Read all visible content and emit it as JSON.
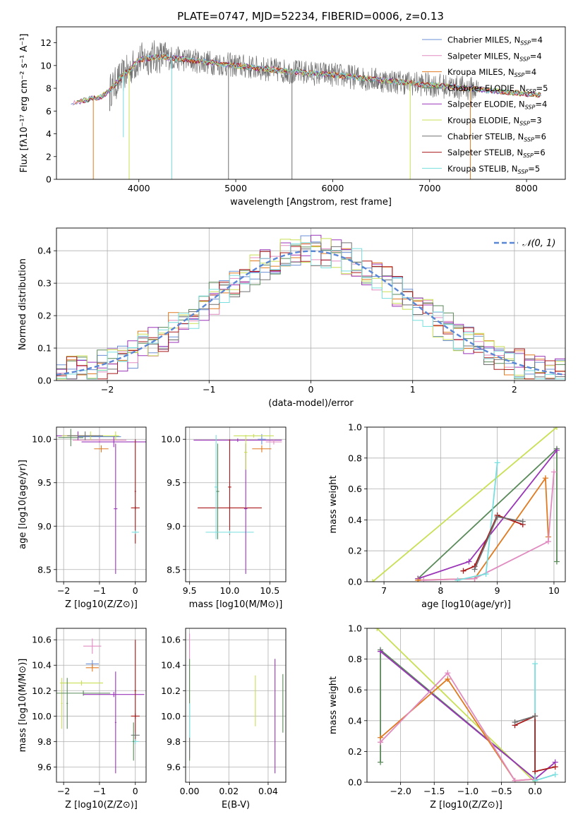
{
  "figure": {
    "title": "PLATE=0747, MJD=52234, FIBERID=0006, z=0.13"
  },
  "colors": {
    "chabrier_miles": "#6b8fd4",
    "salpeter_miles": "#e08cc0",
    "kroupa_miles": "#e07a20",
    "chabrier_elodie": "#5a8a5a",
    "salpeter_elodie": "#9a35b8",
    "kroupa_elodie": "#c8e055",
    "chabrier_stelib": "#707070",
    "salpeter_stelib": "#aa1a1a",
    "kroupa_stelib": "#78dede",
    "gaussian": "#5a86d6",
    "grid": "#b0b0b0"
  },
  "legend_spectrum": [
    {
      "label": "Chabrier MILES, N",
      "sub": "SSP",
      "val": "=4",
      "color_key": "chabrier_miles"
    },
    {
      "label": "Salpeter MILES, N",
      "sub": "SSP",
      "val": "=4",
      "color_key": "salpeter_miles"
    },
    {
      "label": "Kroupa MILES, N",
      "sub": "SSP",
      "val": "=4",
      "color_key": "kroupa_miles"
    },
    {
      "label": "Chabrier ELODIE, N",
      "sub": "SSP",
      "val": "=5",
      "color_key": "chabrier_elodie"
    },
    {
      "label": "Salpeter ELODIE, N",
      "sub": "SSP",
      "val": "=4",
      "color_key": "salpeter_elodie"
    },
    {
      "label": "Kroupa ELODIE, N",
      "sub": "SSP",
      "val": "=3",
      "color_key": "kroupa_elodie"
    },
    {
      "label": "Chabrier STELIB, N",
      "sub": "SSP",
      "val": "=6",
      "color_key": "chabrier_stelib"
    },
    {
      "label": "Salpeter STELIB, N",
      "sub": "SSP",
      "val": "=6",
      "color_key": "salpeter_stelib"
    },
    {
      "label": "Kroupa STELIB, N",
      "sub": "SSP",
      "val": "=5",
      "color_key": "kroupa_stelib"
    }
  ],
  "chart_data": [
    {
      "id": "spectrum",
      "type": "line",
      "xlabel": "wavelength [Angstrom, rest frame]",
      "ylabel": "Flux [fλ10⁻¹⁷ erg cm⁻² s⁻¹ A⁻¹]",
      "xlim": [
        3150,
        8400
      ],
      "ylim": [
        0,
        13.4
      ],
      "xticks": [
        4000,
        5000,
        6000,
        7000,
        8000
      ],
      "yticks": [
        0,
        2,
        4,
        6,
        8,
        10,
        12
      ],
      "grid": false,
      "legend_position": "right",
      "continuum": {
        "x": [
          3300,
          3450,
          3600,
          3700,
          3800,
          3900,
          4000,
          4200,
          4500,
          5000,
          5500,
          6000,
          6500,
          7000,
          7500,
          8000,
          8150
        ],
        "y": [
          6.6,
          7.0,
          7.2,
          7.8,
          8.8,
          9.6,
          10.5,
          10.8,
          10.5,
          10.0,
          9.5,
          9.2,
          8.7,
          8.3,
          7.9,
          7.5,
          7.4
        ]
      },
      "data_noise": 1.1,
      "dips": [
        {
          "x": 3530,
          "y": 0.0,
          "color_key": "kroupa_miles"
        },
        {
          "x": 3700,
          "y": 6.0,
          "color_key": "chabrier_stelib"
        },
        {
          "x": 3840,
          "y": 3.7,
          "color_key": "kroupa_stelib"
        },
        {
          "x": 3900,
          "y": 0.0,
          "color_key": "kroupa_elodie"
        },
        {
          "x": 4340,
          "y": 0.0,
          "color_key": "kroupa_stelib"
        },
        {
          "x": 4925,
          "y": 0.0,
          "color_key": "chabrier_stelib"
        },
        {
          "x": 5580,
          "y": 0.0,
          "color_key": "chabrier_stelib"
        },
        {
          "x": 6800,
          "y": 0.0,
          "color_key": "kroupa_elodie"
        },
        {
          "x": 7420,
          "y": 0.0,
          "color_key": "kroupa_miles"
        }
      ]
    },
    {
      "id": "residuals",
      "type": "line",
      "xlabel": "(data-model)/error",
      "ylabel": "Normed distribution",
      "xlim": [
        -2.5,
        2.5
      ],
      "ylim": [
        0,
        0.47
      ],
      "xticks": [
        -2,
        -1,
        0,
        1,
        2
      ],
      "yticks": [
        0.0,
        0.1,
        0.2,
        0.3,
        0.4
      ],
      "grid": true,
      "legend_position": "top-right",
      "legend_label": "𝒩(0, 1)",
      "hist_bins": 50,
      "hist_jitter": 0.05
    },
    {
      "id": "age_vs_Z",
      "type": "scatter",
      "xlabel": "Z [log10(Z/Z⊙)]",
      "ylabel": "age  [log10(age/yr)]",
      "xlim": [
        -2.2,
        0.3
      ],
      "ylim": [
        8.36,
        10.14
      ],
      "xticks": [
        -2,
        -1,
        0
      ],
      "yticks": [
        8.5,
        9.0,
        9.5,
        10.0
      ],
      "grid": true,
      "points": [
        {
          "x": -1.0,
          "y": 10.03,
          "xerr": 0.6,
          "yerr": 0.02,
          "color_key": "chabrier_miles"
        },
        {
          "x": -1.0,
          "y": 9.99,
          "xerr": 0.75,
          "yerr": 0.03,
          "color_key": "salpeter_miles"
        },
        {
          "x": -0.95,
          "y": 9.89,
          "xerr": 0.2,
          "yerr": 0.04,
          "color_key": "kroupa_miles"
        },
        {
          "x": -1.8,
          "y": 10.02,
          "xerr": 0.35,
          "yerr": 0.1,
          "color_key": "chabrier_elodie"
        },
        {
          "x": -0.6,
          "y": 9.97,
          "xerr": 0.9,
          "yerr": 0.06,
          "color_key": "salpeter_elodie"
        },
        {
          "x": -1.6,
          "y": 10.04,
          "xerr": 0.6,
          "yerr": 0.05,
          "color_key": "salpeter_elodie"
        },
        {
          "x": -0.55,
          "y": 10.04,
          "xerr": 0.05,
          "yerr": 0.05,
          "color_key": "kroupa_elodie"
        },
        {
          "x": -1.25,
          "y": 10.04,
          "xerr": 0.8,
          "yerr": 0.05,
          "color_key": "kroupa_elodie"
        },
        {
          "x": -1.4,
          "y": 10.04,
          "xerr": 0.5,
          "yerr": 0.05,
          "color_key": "chabrier_stelib"
        },
        {
          "x": -0.55,
          "y": 9.2,
          "xerr": 0.05,
          "yerr": 0.75,
          "color_key": "salpeter_elodie"
        },
        {
          "x": 0.0,
          "y": 9.21,
          "xerr": 0.12,
          "yerr": 0.02,
          "color_key": "salpeter_stelib"
        },
        {
          "x": 0.0,
          "y": 9.4,
          "xerr": 0.02,
          "yerr": 0.6,
          "color_key": "salpeter_stelib"
        },
        {
          "x": 0.0,
          "y": 8.93,
          "xerr": 0.1,
          "yerr": 0.02,
          "color_key": "kroupa_stelib"
        }
      ]
    },
    {
      "id": "age_vs_mass",
      "type": "scatter",
      "xlabel": "mass [log10(M/M⊙)]",
      "ylabel": "",
      "xlim": [
        9.45,
        10.7
      ],
      "ylim": [
        8.36,
        10.14
      ],
      "xticks": [
        9.5,
        10.0,
        10.5
      ],
      "yticks": [
        8.5,
        9.0,
        9.5,
        10.0
      ],
      "grid": true,
      "points": [
        {
          "x": 10.1,
          "y": 9.99,
          "xerr": 0.55,
          "yerr": 0.02,
          "color_key": "salpeter_elodie"
        },
        {
          "x": 10.4,
          "y": 10.0,
          "xerr": 0.05,
          "yerr": 0.06,
          "color_key": "chabrier_miles"
        },
        {
          "x": 10.55,
          "y": 9.97,
          "xerr": 0.1,
          "yerr": 0.03,
          "color_key": "salpeter_miles"
        },
        {
          "x": 10.4,
          "y": 9.89,
          "xerr": 0.12,
          "yerr": 0.04,
          "color_key": "kroupa_miles"
        },
        {
          "x": 10.3,
          "y": 10.04,
          "xerr": 0.25,
          "yerr": 0.02,
          "color_key": "kroupa_elodie"
        },
        {
          "x": 10.0,
          "y": 9.21,
          "xerr": 0.4,
          "yerr": 0.02,
          "color_key": "salpeter_stelib"
        },
        {
          "x": 10.0,
          "y": 9.45,
          "xerr": 0.02,
          "yerr": 0.55,
          "color_key": "salpeter_stelib"
        },
        {
          "x": 9.85,
          "y": 9.4,
          "xerr": 0.02,
          "yerr": 0.55,
          "color_key": "chabrier_elodie"
        },
        {
          "x": 10.0,
          "y": 8.93,
          "xerr": 0.3,
          "yerr": 0.02,
          "color_key": "kroupa_stelib"
        },
        {
          "x": 10.2,
          "y": 9.2,
          "xerr": 0.02,
          "yerr": 0.75,
          "color_key": "salpeter_elodie"
        },
        {
          "x": 9.83,
          "y": 9.45,
          "xerr": 0.02,
          "yerr": 0.6,
          "color_key": "kroupa_stelib"
        },
        {
          "x": 10.2,
          "y": 9.85,
          "xerr": 0.02,
          "yerr": 0.2,
          "color_key": "kroupa_elodie"
        }
      ]
    },
    {
      "id": "weight_vs_age",
      "type": "line",
      "xlabel": "age  [log10(age/yr)]",
      "ylabel": "mass weight",
      "xlim": [
        6.7,
        10.2
      ],
      "ylim": [
        0,
        1.0
      ],
      "xticks": [
        7,
        8,
        9,
        10
      ],
      "yticks": [
        0.0,
        0.2,
        0.4,
        0.6,
        0.8,
        1.0
      ],
      "grid": true,
      "series": [
        {
          "color_key": "kroupa_elodie",
          "x": [
            6.8,
            10.05
          ],
          "y": [
            0.0,
            1.0
          ]
        },
        {
          "color_key": "chabrier_elodie",
          "x": [
            7.6,
            10.05,
            10.05
          ],
          "y": [
            0.02,
            0.86,
            0.13
          ]
        },
        {
          "color_key": "salpeter_elodie",
          "x": [
            7.6,
            8.5,
            10.05
          ],
          "y": [
            0.02,
            0.13,
            0.85
          ]
        },
        {
          "color_key": "kroupa_miles",
          "x": [
            7.6,
            8.6,
            9.85,
            9.9
          ],
          "y": [
            0.01,
            0.02,
            0.67,
            0.29
          ]
        },
        {
          "color_key": "salpeter_miles",
          "x": [
            7.7,
            8.6,
            9.9,
            10.0
          ],
          "y": [
            0.01,
            0.02,
            0.26,
            0.71
          ]
        },
        {
          "color_key": "kroupa_stelib",
          "x": [
            8.3,
            8.8,
            9.0
          ],
          "y": [
            0.01,
            0.05,
            0.77
          ]
        },
        {
          "color_key": "salpeter_stelib",
          "x": [
            8.4,
            8.6,
            9.0,
            9.45
          ],
          "y": [
            0.07,
            0.1,
            0.43,
            0.37
          ]
        },
        {
          "color_key": "chabrier_stelib",
          "x": [
            8.6,
            9.0,
            9.45
          ],
          "y": [
            0.08,
            0.42,
            0.39
          ]
        }
      ]
    },
    {
      "id": "mass_vs_Z",
      "type": "scatter",
      "xlabel": "Z [log10(Z/Z⊙)]",
      "ylabel": "mass [log10(M/M⊙)]",
      "xlim": [
        -2.2,
        0.3
      ],
      "ylim": [
        9.48,
        10.69
      ],
      "xticks": [
        -2,
        -1,
        0
      ],
      "yticks": [
        9.6,
        9.8,
        10.0,
        10.2,
        10.4,
        10.6
      ],
      "grid": true,
      "points": [
        {
          "x": -1.2,
          "y": 10.55,
          "xerr": 0.25,
          "yerr": 0.06,
          "color_key": "salpeter_miles"
        },
        {
          "x": -1.2,
          "y": 10.41,
          "xerr": 0.18,
          "yerr": 0.03,
          "color_key": "chabrier_miles"
        },
        {
          "x": -1.2,
          "y": 10.38,
          "xerr": 0.18,
          "yerr": 0.03,
          "color_key": "kroupa_miles"
        },
        {
          "x": -1.5,
          "y": 10.26,
          "xerr": 0.6,
          "yerr": 0.02,
          "color_key": "kroupa_elodie"
        },
        {
          "x": -2.05,
          "y": 10.1,
          "xerr": 0.02,
          "yerr": 0.2,
          "color_key": "kroupa_elodie"
        },
        {
          "x": -1.45,
          "y": 10.18,
          "xerr": 0.75,
          "yerr": 0.02,
          "color_key": "chabrier_elodie"
        },
        {
          "x": -0.6,
          "y": 10.17,
          "xerr": 0.85,
          "yerr": 0.02,
          "color_key": "salpeter_elodie"
        },
        {
          "x": -1.9,
          "y": 10.1,
          "xerr": 0.02,
          "yerr": 0.2,
          "color_key": "chabrier_elodie"
        },
        {
          "x": -0.55,
          "y": 9.95,
          "xerr": 0.02,
          "yerr": 0.4,
          "color_key": "salpeter_elodie"
        },
        {
          "x": 0.0,
          "y": 10.0,
          "xerr": 0.12,
          "yerr": 0.02,
          "color_key": "salpeter_stelib"
        },
        {
          "x": 0.0,
          "y": 10.2,
          "xerr": 0.02,
          "yerr": 0.4,
          "color_key": "salpeter_stelib"
        },
        {
          "x": 0.0,
          "y": 9.85,
          "xerr": 0.12,
          "yerr": 0.02,
          "color_key": "chabrier_stelib"
        },
        {
          "x": 0.0,
          "y": 9.8,
          "xerr": 0.1,
          "yerr": 0.02,
          "color_key": "kroupa_stelib"
        },
        {
          "x": -0.05,
          "y": 9.8,
          "xerr": 0.02,
          "yerr": 0.15,
          "color_key": "chabrier_elodie"
        }
      ]
    },
    {
      "id": "mass_vs_ebv",
      "type": "scatter",
      "xlabel": "E(B-V)",
      "ylabel": "",
      "xlim": [
        -0.002,
        0.049
      ],
      "ylim": [
        9.48,
        10.69
      ],
      "xticks": [
        0.0,
        0.02,
        0.04
      ],
      "yticks": [
        9.6,
        9.8,
        10.0,
        10.2,
        10.4,
        10.6
      ],
      "grid": true,
      "points": [
        {
          "x": 0.0,
          "y": 10.15,
          "xerr": 0.0,
          "yerr": 0.5,
          "color_key": "salpeter_miles"
        },
        {
          "x": 0.0,
          "y": 10.05,
          "xerr": 0.0,
          "yerr": 0.4,
          "color_key": "chabrier_elodie"
        },
        {
          "x": 0.0,
          "y": 9.9,
          "xerr": 0.0,
          "yerr": 0.2,
          "color_key": "kroupa_stelib"
        },
        {
          "x": 0.0,
          "y": 9.75,
          "xerr": 0.0,
          "yerr": 0.08,
          "color_key": "chabrier_stelib"
        },
        {
          "x": 0.0335,
          "y": 10.12,
          "xerr": 0.0,
          "yerr": 0.2,
          "color_key": "kroupa_elodie"
        },
        {
          "x": 0.0435,
          "y": 10.0,
          "xerr": 0.0,
          "yerr": 0.45,
          "color_key": "salpeter_elodie"
        },
        {
          "x": 0.0475,
          "y": 10.1,
          "xerr": 0.0,
          "yerr": 0.23,
          "color_key": "chabrier_elodie"
        }
      ]
    },
    {
      "id": "weight_vs_Z",
      "type": "line",
      "xlabel": "Z [log10(Z/Z⊙)]",
      "ylabel": "mass weight",
      "xlim": [
        -2.5,
        0.45
      ],
      "ylim": [
        0,
        1.0
      ],
      "xticks": [
        -2.0,
        -1.5,
        -1.0,
        -0.5,
        0.0
      ],
      "yticks": [
        0.0,
        0.2,
        0.4,
        0.6,
        0.8,
        1.0
      ],
      "grid": true,
      "series": [
        {
          "color_key": "kroupa_elodie",
          "x": [
            -2.35,
            0.0
          ],
          "y": [
            1.0,
            0.0
          ]
        },
        {
          "color_key": "chabrier_elodie",
          "x": [
            -2.3,
            -2.3,
            0.0
          ],
          "y": [
            0.13,
            0.86,
            0.02
          ]
        },
        {
          "color_key": "salpeter_elodie",
          "x": [
            -2.3,
            0.0,
            0.3
          ],
          "y": [
            0.85,
            0.02,
            0.13
          ]
        },
        {
          "color_key": "kroupa_miles",
          "x": [
            -2.3,
            -1.3,
            -0.3,
            0.0
          ],
          "y": [
            0.29,
            0.67,
            0.01,
            0.02
          ]
        },
        {
          "color_key": "salpeter_miles",
          "x": [
            -2.3,
            -1.3,
            -0.3,
            0.0
          ],
          "y": [
            0.26,
            0.71,
            0.01,
            0.02
          ]
        },
        {
          "color_key": "kroupa_stelib",
          "x": [
            0.0,
            0.0,
            0.3
          ],
          "y": [
            0.77,
            0.01,
            0.05
          ]
        },
        {
          "color_key": "salpeter_stelib",
          "x": [
            -0.3,
            0.0,
            0.0,
            0.3
          ],
          "y": [
            0.37,
            0.43,
            0.07,
            0.1
          ]
        },
        {
          "color_key": "chabrier_stelib",
          "x": [
            -0.3,
            0.0
          ],
          "y": [
            0.39,
            0.43
          ]
        }
      ]
    }
  ]
}
